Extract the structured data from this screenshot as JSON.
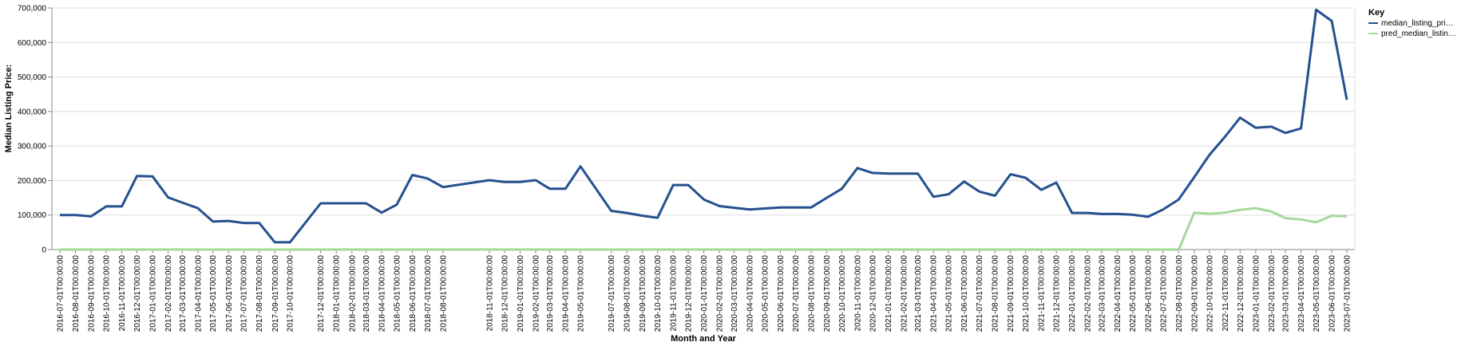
{
  "chart_data": {
    "type": "line",
    "xlabel": "Month and Year",
    "ylabel": "Median Listing Price:",
    "ylim": [
      0,
      700000
    ],
    "yticks": [
      0,
      100000,
      200000,
      300000,
      400000,
      500000,
      600000,
      700000
    ],
    "ytick_labels": [
      "0",
      "100,000",
      "200,000",
      "300,000",
      "400,000",
      "500,000",
      "600,000",
      "700,000"
    ],
    "grid": true,
    "legend_placement": "top-right",
    "legend_title": "Key",
    "x": [
      "2016-07-01T00:00:00",
      "2016-08-01T00:00:00",
      "2016-09-01T00:00:00",
      "2016-10-01T00:00:00",
      "2016-11-01T00:00:00",
      "2016-12-01T00:00:00",
      "2017-01-01T00:00:00",
      "2017-02-01T00:00:00",
      "2017-03-01T00:00:00",
      "2017-04-01T00:00:00",
      "2017-05-01T00:00:00",
      "2017-06-01T00:00:00",
      "2017-07-01T00:00:00",
      "2017-08-01T00:00:00",
      "2017-09-01T00:00:00",
      "2017-10-01T00:00:00",
      "2017-12-01T00:00:00",
      "2018-01-01T00:00:00",
      "2018-02-01T00:00:00",
      "2018-03-01T00:00:00",
      "2018-04-01T00:00:00",
      "2018-05-01T00:00:00",
      "2018-06-01T00:00:00",
      "2018-07-01T00:00:00",
      "2018-08-01T00:00:00",
      "2018-11-01T00:00:00",
      "2018-12-01T00:00:00",
      "2019-01-01T00:00:00",
      "2019-02-01T00:00:00",
      "2019-03-01T00:00:00",
      "2019-04-01T00:00:00",
      "2019-05-01T00:00:00",
      "2019-07-01T00:00:00",
      "2019-08-01T00:00:00",
      "2019-09-01T00:00:00",
      "2019-10-01T00:00:00",
      "2019-11-01T00:00:00",
      "2019-12-01T00:00:00",
      "2020-01-01T00:00:00",
      "2020-02-01T00:00:00",
      "2020-03-01T00:00:00",
      "2020-04-01T00:00:00",
      "2020-05-01T00:00:00",
      "2020-06-01T00:00:00",
      "2020-07-01T00:00:00",
      "2020-08-01T00:00:00",
      "2020-09-01T00:00:00",
      "2020-10-01T00:00:00",
      "2020-11-01T00:00:00",
      "2020-12-01T00:00:00",
      "2021-01-01T00:00:00",
      "2021-02-01T00:00:00",
      "2021-03-01T00:00:00",
      "2021-04-01T00:00:00",
      "2021-05-01T00:00:00",
      "2021-06-01T00:00:00",
      "2021-07-01T00:00:00",
      "2021-08-01T00:00:00",
      "2021-09-01T00:00:00",
      "2021-10-01T00:00:00",
      "2021-11-01T00:00:00",
      "2021-12-01T00:00:00",
      "2022-01-01T00:00:00",
      "2022-02-01T00:00:00",
      "2022-03-01T00:00:00",
      "2022-04-01T00:00:00",
      "2022-05-01T00:00:00",
      "2022-06-01T00:00:00",
      "2022-07-01T00:00:00",
      "2022-08-01T00:00:00",
      "2022-09-01T00:00:00",
      "2022-10-01T00:00:00",
      "2022-11-01T00:00:00",
      "2022-12-01T00:00:00",
      "2023-01-01T00:00:00",
      "2023-02-01T00:00:00",
      "2023-03-01T00:00:00",
      "2023-04-01T00:00:00",
      "2023-05-01T00:00:00",
      "2023-06-01T00:00:00",
      "2023-07-01T00:00:00"
    ],
    "series": [
      {
        "name": "median_listing_pri…",
        "color": "#24508f",
        "values": [
          100000,
          100000,
          96000,
          125000,
          125000,
          213000,
          212000,
          151000,
          136000,
          120000,
          81000,
          83000,
          77000,
          77000,
          21000,
          21000,
          134000,
          134000,
          134000,
          134000,
          107000,
          130000,
          216000,
          206000,
          181000,
          201000,
          196000,
          196000,
          201000,
          176000,
          176000,
          241000,
          112000,
          106000,
          98000,
          92000,
          187000,
          187000,
          145000,
          126000,
          121000,
          116000,
          119000,
          122000,
          122000,
          122000,
          150000,
          176000,
          236000,
          222000,
          220000,
          220000,
          220000,
          153000,
          160000,
          197000,
          168000,
          156000,
          218000,
          208000,
          173000,
          194000,
          106000,
          106000,
          103000,
          103000,
          101000,
          95000,
          116000,
          145000,
          210000,
          274000,
          327000,
          382000,
          353000,
          356000,
          338000,
          351000,
          695000,
          662000,
          434000
        ]
      },
      {
        "name": "pred_median_listin…",
        "color": "#a4d99b",
        "values": [
          0,
          0,
          0,
          0,
          0,
          0,
          0,
          0,
          0,
          0,
          0,
          0,
          0,
          0,
          0,
          0,
          0,
          0,
          0,
          0,
          0,
          0,
          0,
          0,
          0,
          0,
          0,
          0,
          0,
          0,
          0,
          0,
          0,
          0,
          0,
          0,
          0,
          0,
          0,
          0,
          0,
          0,
          0,
          0,
          0,
          0,
          0,
          0,
          0,
          0,
          0,
          0,
          0,
          0,
          0,
          0,
          0,
          0,
          0,
          0,
          0,
          0,
          0,
          0,
          0,
          0,
          0,
          0,
          0,
          0,
          107000,
          104000,
          107000,
          115000,
          120000,
          110000,
          91000,
          87000,
          79000,
          98000,
          96000
        ]
      }
    ]
  }
}
